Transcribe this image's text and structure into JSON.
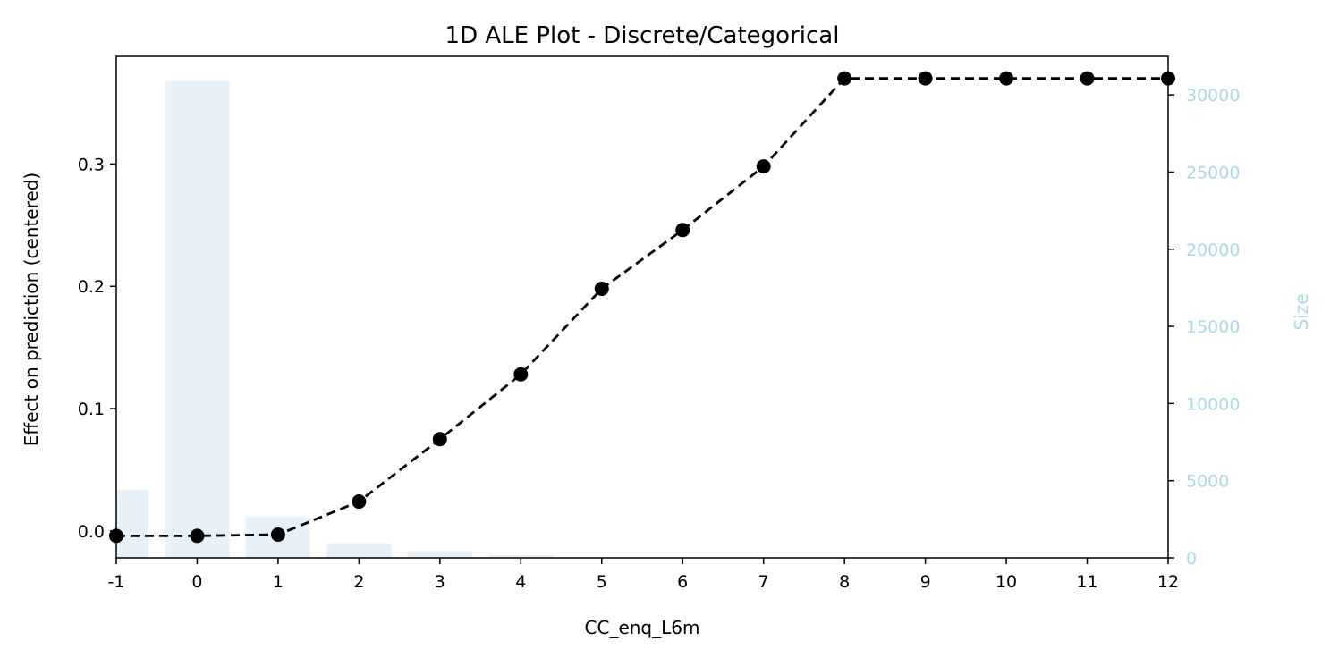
{
  "chart_data": {
    "type": "line",
    "title": "1D ALE Plot - Discrete/Categorical",
    "xlabel": "CC_enq_L6m",
    "ylabel": "Effect on prediction (centered)",
    "y2label": "Size",
    "x_ticks": [
      "-1",
      "0",
      "1",
      "2",
      "3",
      "4",
      "5",
      "6",
      "7",
      "8",
      "9",
      "10",
      "11",
      "12"
    ],
    "xlim": [
      -1,
      12
    ],
    "ylim": [
      -0.022,
      0.388
    ],
    "y_ticks": [
      0.0,
      0.1,
      0.2,
      0.3
    ],
    "y_tick_labels": [
      "0.0",
      "0.1",
      "0.2",
      "0.3"
    ],
    "y2lim": [
      0,
      32500
    ],
    "y2_ticks": [
      0,
      5000,
      10000,
      15000,
      20000,
      25000,
      30000
    ],
    "y2_tick_labels": [
      "0",
      "5000",
      "10000",
      "15000",
      "20000",
      "25000",
      "30000"
    ],
    "series": [
      {
        "style": "dashed-line-with-markers",
        "color": "#000000",
        "x": [
          -1,
          0,
          1,
          2,
          3,
          4,
          5,
          6,
          7,
          8,
          9,
          10,
          11,
          12
        ],
        "values": [
          -0.004,
          -0.004,
          -0.003,
          0.024,
          0.075,
          0.128,
          0.198,
          0.246,
          0.298,
          0.37,
          0.37,
          0.37,
          0.37,
          0.37
        ]
      }
    ],
    "bars": {
      "axis": "right",
      "color": "#e8f0f8",
      "x": [
        -1,
        0,
        1,
        2,
        3,
        4
      ],
      "values": [
        4400,
        30900,
        2650,
        950,
        450,
        200
      ]
    },
    "right_axis_color": "#add8e6",
    "grid": false,
    "legend": "none"
  }
}
